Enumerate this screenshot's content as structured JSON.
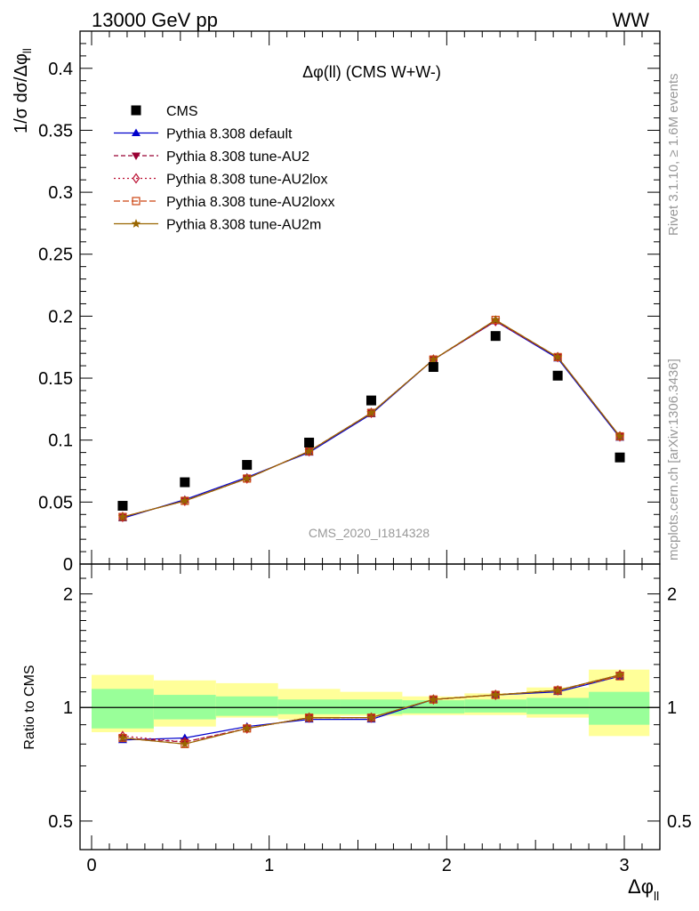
{
  "header": {
    "beam": "13000 GeV pp",
    "process": "WW"
  },
  "side_text": {
    "rivet": "Rivet 3.1.10, ≥ 1.6M events",
    "mcplots": "mcplots.cern.ch [arXiv:1306.3436]"
  },
  "colors": {
    "cms": "#000000",
    "default": "#0000cc",
    "au2": "#990033",
    "au2lox": "#bb1133",
    "au2loxx": "#cc4411",
    "au2m": "#996600",
    "band_inner": "#99ff99",
    "band_outer": "#ffff99"
  },
  "chart_data": [
    {
      "type": "scatter",
      "title": "Δφ(ll) (CMS W+W-)",
      "watermark": "CMS_2020_I1814328",
      "ylabel": "1/σ dσ/Δφ_ll",
      "ylim": [
        0,
        0.43
      ],
      "yticks": [
        "0",
        "0.05",
        "0.1",
        "0.15",
        "0.2",
        "0.25",
        "0.3",
        "0.35",
        "0.4"
      ],
      "legend_position": "top-left",
      "x": [
        0.175,
        0.525,
        0.875,
        1.225,
        1.575,
        1.925,
        2.275,
        2.625,
        2.975
      ],
      "series": [
        {
          "name": "CMS",
          "values": [
            0.047,
            0.066,
            0.08,
            0.098,
            0.132,
            0.159,
            0.184,
            0.152,
            0.086
          ]
        },
        {
          "name": "Pythia 8.308 default",
          "values": [
            0.037,
            0.052,
            0.07,
            0.09,
            0.121,
            0.165,
            0.196,
            0.166,
            0.102
          ]
        },
        {
          "name": "Pythia 8.308 tune-AU2",
          "values": [
            0.038,
            0.051,
            0.069,
            0.091,
            0.122,
            0.165,
            0.196,
            0.167,
            0.103
          ]
        },
        {
          "name": "Pythia 8.308 tune-AU2lox",
          "values": [
            0.038,
            0.051,
            0.069,
            0.091,
            0.122,
            0.165,
            0.196,
            0.167,
            0.103
          ]
        },
        {
          "name": "Pythia 8.308 tune-AU2loxx",
          "values": [
            0.038,
            0.051,
            0.069,
            0.091,
            0.122,
            0.165,
            0.197,
            0.167,
            0.103
          ]
        },
        {
          "name": "Pythia 8.308 tune-AU2m",
          "values": [
            0.038,
            0.051,
            0.069,
            0.091,
            0.122,
            0.165,
            0.197,
            0.167,
            0.103
          ]
        }
      ]
    },
    {
      "type": "line",
      "xlabel": "Δφ_ll",
      "ylabel": "Ratio to CMS",
      "scale": "log",
      "ylim": [
        0.42,
        2.4
      ],
      "yticks": [
        "0.5",
        "1",
        "2"
      ],
      "xlim": [
        -0.1,
        3.2
      ],
      "xticks": [
        "0",
        "1",
        "2",
        "3"
      ],
      "x": [
        0.175,
        0.525,
        0.875,
        1.225,
        1.575,
        1.925,
        2.275,
        2.625,
        2.975
      ],
      "bin_edges": [
        0.0,
        0.35,
        0.7,
        1.05,
        1.4,
        1.75,
        2.1,
        2.45,
        2.8,
        3.14159
      ],
      "band_inner": {
        "low": [
          0.88,
          0.93,
          0.95,
          0.96,
          0.96,
          0.965,
          0.97,
          0.96,
          0.9
        ],
        "high": [
          1.12,
          1.08,
          1.07,
          1.05,
          1.05,
          1.045,
          1.05,
          1.06,
          1.1
        ]
      },
      "band_outer": {
        "low": [
          0.86,
          0.89,
          0.94,
          0.93,
          0.95,
          0.955,
          0.955,
          0.94,
          0.84
        ],
        "high": [
          1.22,
          1.18,
          1.16,
          1.12,
          1.1,
          1.07,
          1.09,
          1.13,
          1.26
        ]
      },
      "series": [
        {
          "name": "Pythia 8.308 default",
          "values": [
            0.82,
            0.83,
            0.89,
            0.93,
            0.93,
            1.05,
            1.08,
            1.1,
            1.21
          ]
        },
        {
          "name": "Pythia 8.308 tune-AU2",
          "values": [
            0.83,
            0.81,
            0.88,
            0.94,
            0.94,
            1.05,
            1.08,
            1.11,
            1.22
          ]
        },
        {
          "name": "Pythia 8.308 tune-AU2lox",
          "values": [
            0.84,
            0.81,
            0.88,
            0.94,
            0.94,
            1.05,
            1.08,
            1.11,
            1.22
          ]
        },
        {
          "name": "Pythia 8.308 tune-AU2loxx",
          "values": [
            0.83,
            0.8,
            0.88,
            0.94,
            0.94,
            1.05,
            1.08,
            1.11,
            1.21
          ]
        },
        {
          "name": "Pythia 8.308 tune-AU2m",
          "values": [
            0.83,
            0.8,
            0.88,
            0.94,
            0.94,
            1.05,
            1.08,
            1.11,
            1.22
          ]
        }
      ]
    }
  ]
}
